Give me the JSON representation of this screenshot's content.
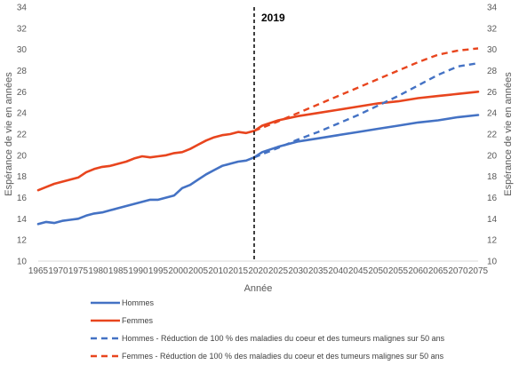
{
  "chart_data": {
    "type": "line",
    "xlabel": "Année",
    "ylabel_left": "Espérance de vie en années",
    "ylabel_right": "Espérance de vie en années",
    "xlim": [
      1965,
      2075
    ],
    "ylim": [
      10,
      34
    ],
    "x_ticks": [
      1965,
      1970,
      1975,
      1980,
      1985,
      1990,
      1995,
      2000,
      2005,
      2010,
      2015,
      2020,
      2025,
      2030,
      2035,
      2040,
      2045,
      2050,
      2055,
      2060,
      2065,
      2070,
      2075
    ],
    "y_ticks": [
      10,
      12,
      14,
      16,
      18,
      20,
      22,
      24,
      26,
      28,
      30,
      32,
      34
    ],
    "grid": false,
    "legend_position": "bottom",
    "annotation": {
      "label": "2019",
      "x": 2019
    },
    "colors": {
      "hommes": "#4472C4",
      "femmes": "#E8451E",
      "annotation_line": "#000000"
    },
    "series": [
      {
        "name": "Hommes",
        "style": "solid",
        "color": "#4472C4",
        "x": [
          1965,
          1967,
          1969,
          1971,
          1973,
          1975,
          1977,
          1979,
          1981,
          1983,
          1985,
          1987,
          1989,
          1991,
          1993,
          1995,
          1997,
          1999,
          2001,
          2003,
          2005,
          2007,
          2009,
          2011,
          2013,
          2015,
          2017,
          2019,
          2021,
          2025,
          2030,
          2035,
          2040,
          2045,
          2050,
          2055,
          2060,
          2065,
          2070,
          2075
        ],
        "y": [
          13.5,
          13.7,
          13.6,
          13.8,
          13.9,
          14.0,
          14.3,
          14.5,
          14.6,
          14.8,
          15.0,
          15.2,
          15.4,
          15.6,
          15.8,
          15.8,
          16.0,
          16.2,
          16.9,
          17.2,
          17.7,
          18.2,
          18.6,
          19.0,
          19.2,
          19.4,
          19.5,
          19.8,
          20.3,
          20.8,
          21.3,
          21.6,
          21.9,
          22.2,
          22.5,
          22.8,
          23.1,
          23.3,
          23.6,
          23.8
        ]
      },
      {
        "name": "Femmes",
        "style": "solid",
        "color": "#E8451E",
        "x": [
          1965,
          1967,
          1969,
          1971,
          1973,
          1975,
          1977,
          1979,
          1981,
          1983,
          1985,
          1987,
          1989,
          1991,
          1993,
          1995,
          1997,
          1999,
          2001,
          2003,
          2005,
          2007,
          2009,
          2011,
          2013,
          2015,
          2017,
          2019,
          2021,
          2025,
          2030,
          2035,
          2040,
          2045,
          2050,
          2055,
          2060,
          2065,
          2070,
          2075
        ],
        "y": [
          16.7,
          17.0,
          17.3,
          17.5,
          17.7,
          17.9,
          18.4,
          18.7,
          18.9,
          19.0,
          19.2,
          19.4,
          19.7,
          19.9,
          19.8,
          19.9,
          20.0,
          20.2,
          20.3,
          20.6,
          21.0,
          21.4,
          21.7,
          21.9,
          22.0,
          22.2,
          22.1,
          22.3,
          22.8,
          23.3,
          23.7,
          24.0,
          24.3,
          24.6,
          24.9,
          25.1,
          25.4,
          25.6,
          25.8,
          26.0
        ]
      },
      {
        "name": "Hommes - Réduction de 100 % des maladies du coeur et des tumeurs malignes sur 50 ans",
        "style": "dashed",
        "color": "#4472C4",
        "x": [
          2019,
          2025,
          2030,
          2035,
          2040,
          2045,
          2050,
          2055,
          2060,
          2065,
          2070,
          2075
        ],
        "y": [
          19.8,
          20.7,
          21.5,
          22.2,
          23.0,
          23.8,
          24.7,
          25.6,
          26.6,
          27.6,
          28.4,
          28.7
        ]
      },
      {
        "name": "Femmes - Réduction de 100 % des maladies du coeur et des tumeurs malignes sur 50 ans",
        "style": "dashed",
        "color": "#E8451E",
        "x": [
          2019,
          2025,
          2030,
          2035,
          2040,
          2045,
          2050,
          2055,
          2060,
          2065,
          2070,
          2075
        ],
        "y": [
          22.3,
          23.2,
          24.0,
          24.8,
          25.6,
          26.4,
          27.2,
          28.0,
          28.8,
          29.5,
          29.9,
          30.1
        ]
      }
    ]
  }
}
